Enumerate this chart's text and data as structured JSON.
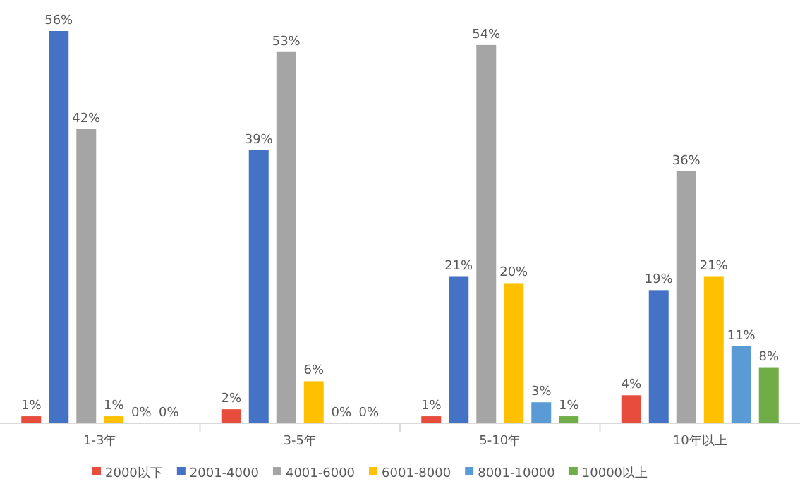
{
  "chart_data": {
    "type": "bar",
    "legend": "bottom",
    "categories": [
      "1-3年",
      "3-5年",
      "5-10年",
      "10年以上"
    ],
    "series": [
      {
        "name": "2000以下",
        "color": "#e84c3d",
        "values": [
          1,
          2,
          1,
          4
        ],
        "value_labels": [
          "1%",
          "2%",
          "1%",
          "4%"
        ]
      },
      {
        "name": "2001-4000",
        "color": "#4472c4",
        "values": [
          56,
          39,
          21,
          19
        ],
        "value_labels": [
          "56%",
          "39%",
          "21%",
          "19%"
        ]
      },
      {
        "name": "4001-6000",
        "color": "#a5a5a5",
        "values": [
          42,
          53,
          54,
          36
        ],
        "value_labels": [
          "42%",
          "53%",
          "54%",
          "36%"
        ]
      },
      {
        "name": "6001-8000",
        "color": "#ffc000",
        "values": [
          1,
          6,
          20,
          21
        ],
        "value_labels": [
          "1%",
          "6%",
          "20%",
          "21%"
        ]
      },
      {
        "name": "8001-10000",
        "color": "#5b9bd5",
        "values": [
          0,
          0,
          3,
          11
        ],
        "value_labels": [
          "0%",
          "0%",
          "3%",
          "11%"
        ]
      },
      {
        "name": "10000以上",
        "color": "#70ad47",
        "values": [
          0,
          0,
          1,
          8
        ],
        "value_labels": [
          "0%",
          "0%",
          "1%",
          "8%"
        ]
      }
    ]
  }
}
